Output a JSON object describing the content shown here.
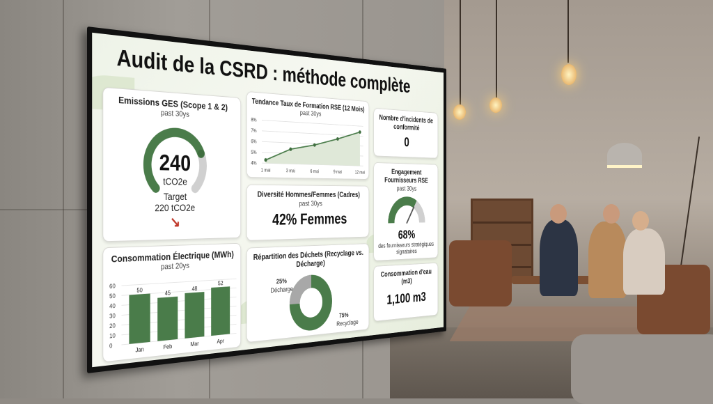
{
  "dashboard": {
    "title": "Audit de la CSRD : méthode complète",
    "colors": {
      "accent": "#4a7c4a",
      "gray": "#c8c8c8",
      "arrow": "#c0392b"
    },
    "emissions": {
      "title": "Emissions GES (Scope 1 & 2)",
      "subtitle": "past 30ys",
      "value": "240",
      "unit": "tCO2e",
      "target_label": "Target",
      "target_value": "220 tCO2e",
      "gauge_fraction": 0.75,
      "trend_icon": "arrow-down-right"
    },
    "training": {
      "title": "Tendance Taux de Formation RSE (12 Mois)",
      "subtitle": "past 30ys"
    },
    "incidents": {
      "title": "Nombre d'incidents de conformité",
      "value": "0"
    },
    "diversity": {
      "title": "Diversité Hommes/Femmes (Cadres)",
      "subtitle": "past 30ys",
      "value": "42% Femmes"
    },
    "suppliers": {
      "title": "Engagement Fournisseurs RSE",
      "subtitle": "past 30ys",
      "value": "68%",
      "caption": "des fournisseurs stratégiques signataires",
      "gauge_fraction": 0.68
    },
    "electricity": {
      "title": "Consommation Électrique (MWh)",
      "subtitle": "past 20ys"
    },
    "waste": {
      "title": "Répartition des Déchets (Recyclage vs. Décharge)",
      "landfill_label": "25%",
      "landfill_name": "Décharge",
      "recycle_label": "75%",
      "recycle_name": "Recyclage"
    },
    "water": {
      "title": "Consommation d'eau (m3)",
      "value": "1,100 m3"
    }
  },
  "chart_data": [
    {
      "type": "line",
      "title": "Tendance Taux de Formation RSE (12 Mois)",
      "categories": [
        "1 mai",
        "3 mai",
        "6 mai",
        "9 mai",
        "12 mai"
      ],
      "values": [
        4.3,
        5.4,
        5.9,
        6.6,
        7.4
      ],
      "yticks": [
        "8%",
        "7%",
        "6%",
        "5%",
        "4%"
      ],
      "ylim": [
        4,
        8
      ],
      "grid": true
    },
    {
      "type": "bar",
      "title": "Consommation Électrique (MWh)",
      "categories": [
        "Jan",
        "Feb",
        "Mar",
        "Apr"
      ],
      "values": [
        50,
        45,
        48,
        52
      ],
      "yticks": [
        "60",
        "50",
        "40",
        "30",
        "20",
        "10",
        "0"
      ],
      "ylim": [
        0,
        60
      ],
      "grid": true
    },
    {
      "type": "pie",
      "title": "Répartition des Déchets (Recyclage vs. Décharge)",
      "labels": [
        "Décharge",
        "Recyclage"
      ],
      "values": [
        25,
        75
      ]
    }
  ]
}
